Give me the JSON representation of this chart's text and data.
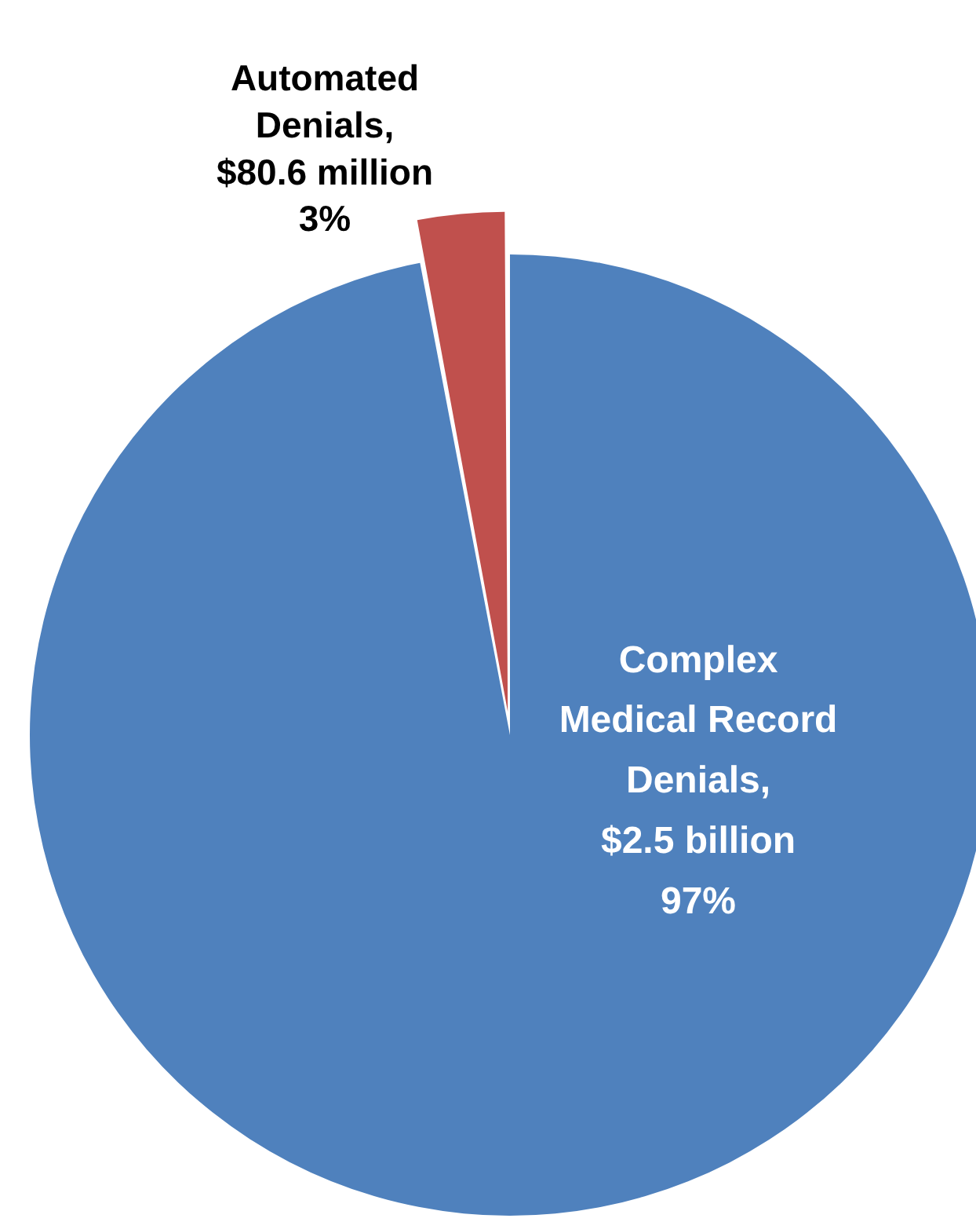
{
  "chart_data": {
    "type": "pie",
    "categories": [
      "Complex Medical Record Denials",
      "Automated Denials"
    ],
    "values": [
      97,
      3
    ],
    "colors": [
      "#4f81bd",
      "#c0504d"
    ],
    "value_labels": [
      ",\n$2.5 billion\n97%",
      ",\n$80.6 million\n3%"
    ],
    "legend": false
  }
}
